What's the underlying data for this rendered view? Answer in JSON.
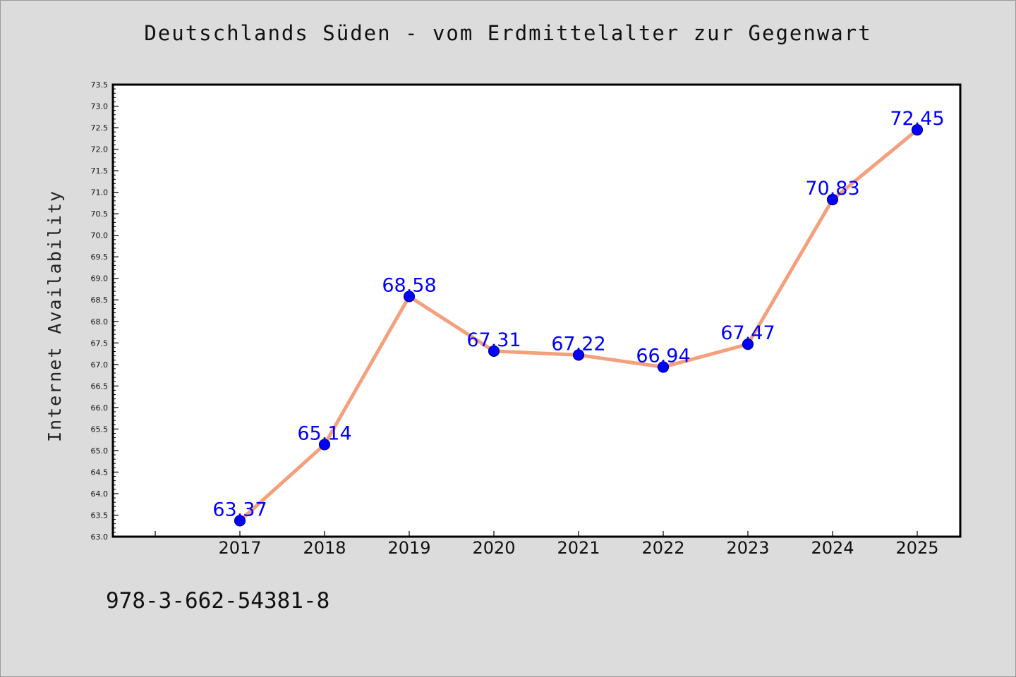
{
  "chart_data": {
    "type": "line",
    "title": "Deutschlands Süden - vom Erdmittelalter zur Gegenwart",
    "xlabel": "",
    "ylabel": "Internet Availability",
    "categories": [
      "2017",
      "2018",
      "2019",
      "2020",
      "2021",
      "2022",
      "2023",
      "2024",
      "2025"
    ],
    "series": [
      {
        "values": [
          63.37,
          65.14,
          68.58,
          67.31,
          67.22,
          66.94,
          67.47,
          70.83,
          72.45
        ],
        "line_color": "#f4a07c",
        "marker_color": "#0000ff"
      }
    ],
    "data_labels": [
      "63.37",
      "65.14",
      "68.58",
      "67.31",
      "67.22",
      "66.94",
      "67.47",
      "70.83",
      "72.45"
    ],
    "ylim": [
      63.0,
      73.5
    ],
    "yticks": [
      "63.0",
      "63.5",
      "64.0",
      "64.5",
      "65.0",
      "65.5",
      "66.0",
      "66.5",
      "67.0",
      "67.5",
      "68.0",
      "68.5",
      "69.0",
      "69.5",
      "70.0",
      "70.5",
      "71.0",
      "71.5",
      "72.0",
      "72.5",
      "73.0",
      "73.5"
    ],
    "grid": false,
    "legend": "none",
    "label_color": "#0000ff"
  },
  "footer": {
    "isbn": "978-3-662-54381-8"
  }
}
